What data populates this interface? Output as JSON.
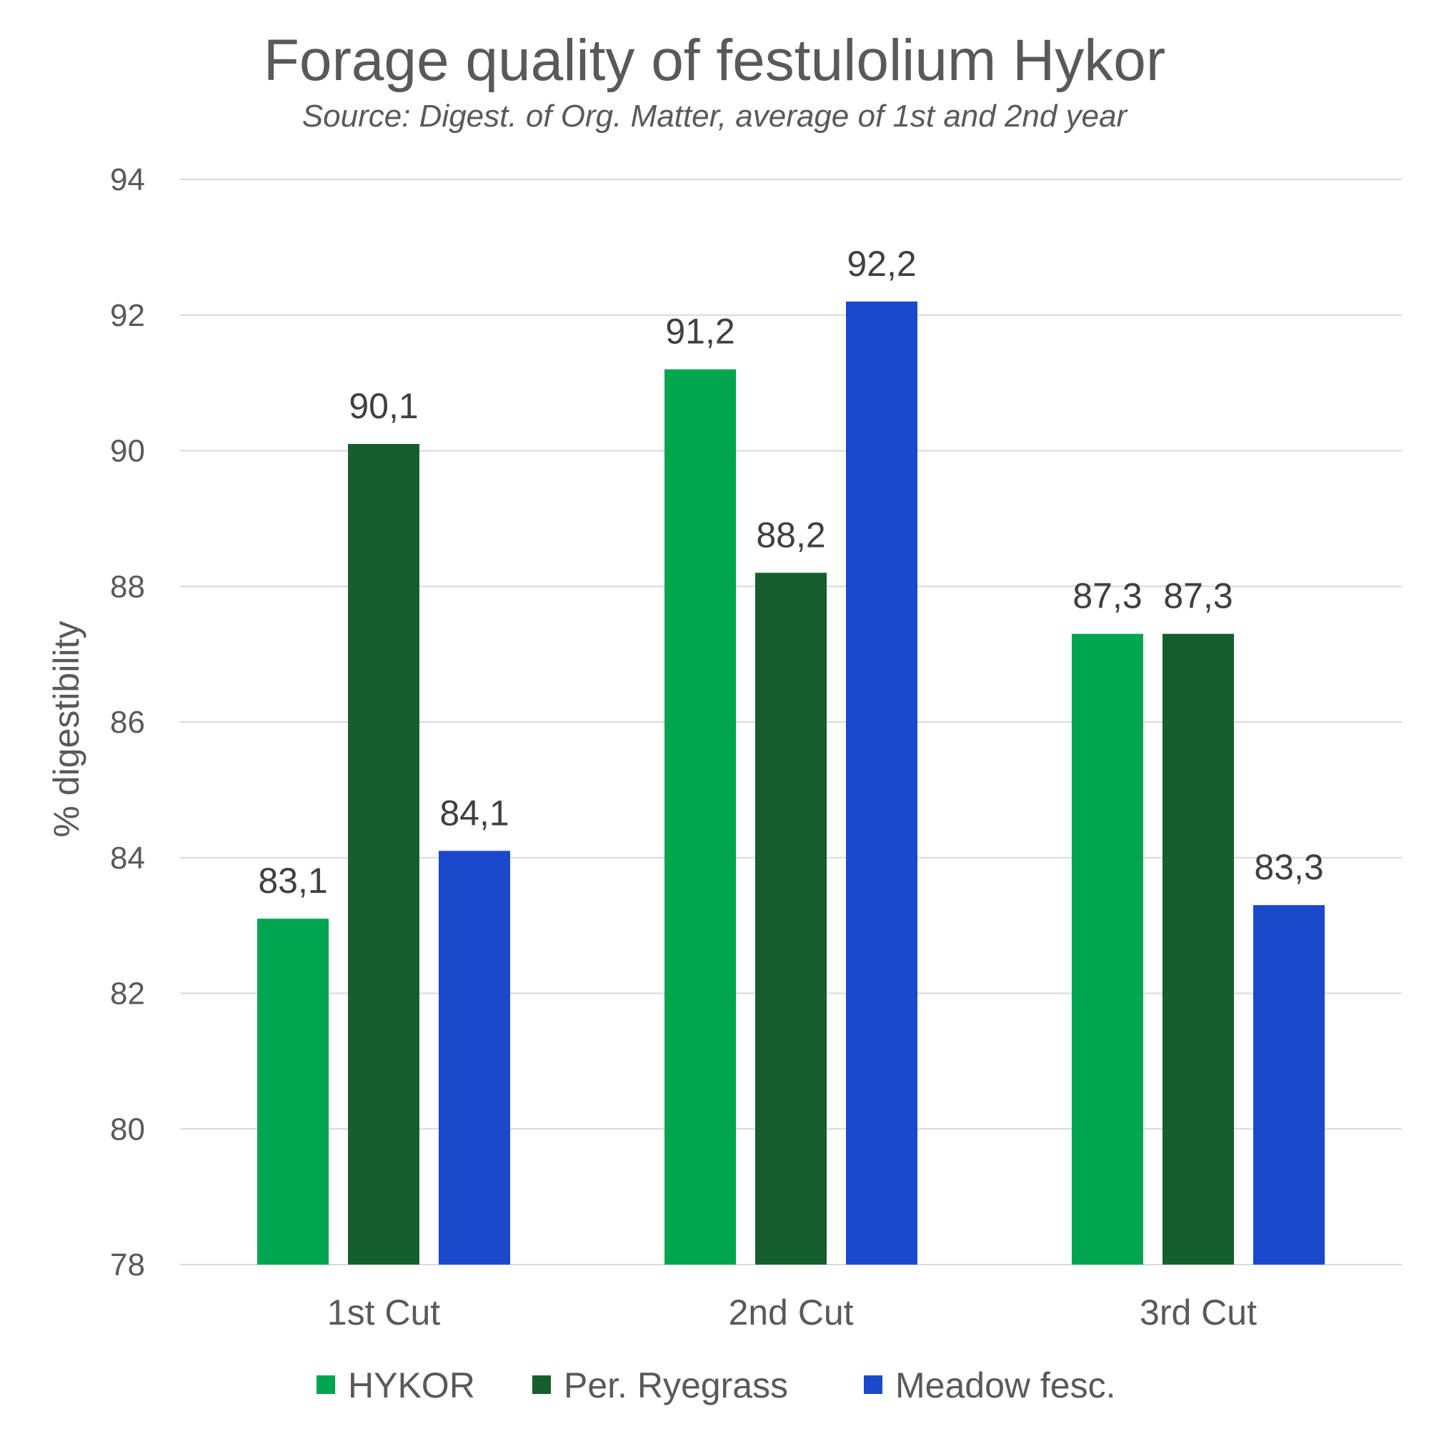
{
  "chart_data": {
    "type": "bar",
    "title": "Forage quality of festulolium Hykor",
    "subtitle": "Source: Digest. of Org. Matter, average of 1st and 2nd year",
    "xlabel": "",
    "ylabel": "% digestibility",
    "ylim": [
      78,
      94
    ],
    "ytick_step": 2,
    "grid": true,
    "legend_position": "bottom",
    "categories": [
      "1st Cut",
      "2nd Cut",
      "3rd Cut"
    ],
    "series": [
      {
        "name": "HYKOR",
        "color": "#00A550",
        "values": [
          83.1,
          91.2,
          87.3
        ],
        "labels": [
          "83,1",
          "91,2",
          "87,3"
        ]
      },
      {
        "name": "Per. Ryegrass",
        "color": "#155F2D",
        "values": [
          90.1,
          88.2,
          87.3
        ],
        "labels": [
          "90,1",
          "88,2",
          "87,3"
        ]
      },
      {
        "name": "Meadow fesc.",
        "color": "#1A49CC",
        "values": [
          84.1,
          92.2,
          83.3
        ],
        "labels": [
          "84,1",
          "92,2",
          "83,3"
        ]
      }
    ]
  }
}
